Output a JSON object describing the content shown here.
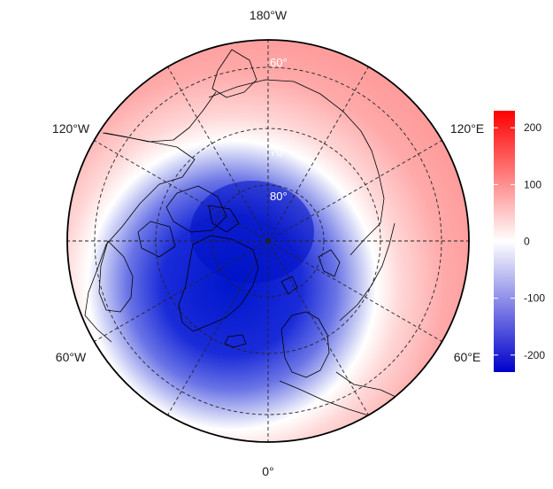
{
  "map": {
    "projection": "polar-stereographic-north",
    "center_lat": 90,
    "boundary_lat": 40,
    "longitude_labels": [
      {
        "text": "180°W",
        "lon": 180
      },
      {
        "text": "120°W",
        "lon": -120
      },
      {
        "text": "60°W",
        "lon": -60
      },
      {
        "text": "0°",
        "lon": 0
      },
      {
        "text": "60°E",
        "lon": 60
      },
      {
        "text": "120°E",
        "lon": 120
      }
    ],
    "latitude_circles": [
      {
        "text": "60°",
        "lat": 60
      },
      {
        "text": "70°",
        "lat": 70
      },
      {
        "text": "80°",
        "lat": 80
      }
    ],
    "meridians_deg": [
      0,
      30,
      60,
      90,
      120,
      150,
      180,
      210,
      240,
      270,
      300,
      330
    ],
    "field": {
      "description": "filled contour field",
      "minimum_center_lat": 78,
      "minimum_center_lon": -45,
      "minimum_value": -220,
      "edge_value": 150
    }
  },
  "colorbar": {
    "min": -230,
    "max": 230,
    "ticks": [
      -200,
      -100,
      0,
      100,
      200
    ],
    "tick_labels": [
      "-200",
      "-100",
      "0",
      "100",
      "200"
    ],
    "colors": {
      "low": "#0000cc",
      "mid": "#ffffff",
      "high": "#ff0000"
    }
  }
}
